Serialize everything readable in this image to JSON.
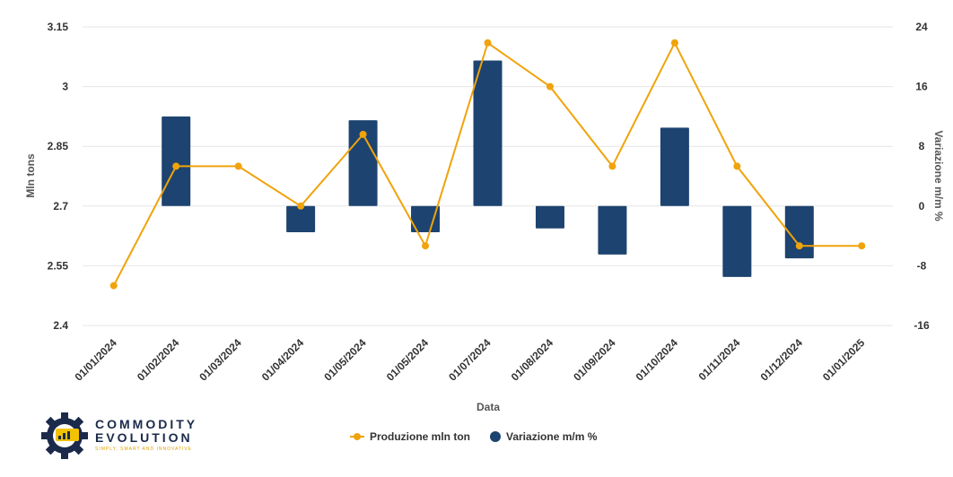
{
  "chart_data": {
    "type": "bar+line",
    "categories": [
      "01/01/2024",
      "01/02/2024",
      "01/03/2024",
      "01/04/2024",
      "01/05/2024",
      "01/05/2024",
      "01/07/2024",
      "01/08/2024",
      "01/09/2024",
      "01/10/2024",
      "01/11/2024",
      "01/12/2024",
      "01/01/2025"
    ],
    "series": [
      {
        "name": "Produzione mln ton",
        "kind": "line",
        "axis": "left",
        "color": "#f0a30a",
        "values": [
          2.5,
          2.8,
          2.8,
          2.7,
          2.88,
          2.6,
          3.11,
          3.0,
          2.8,
          3.11,
          2.8,
          2.6,
          2.6
        ]
      },
      {
        "name": "Variazione m/m %",
        "kind": "bar",
        "axis": "right",
        "color": "#1d4370",
        "values": [
          0,
          12,
          0,
          -3.5,
          11.5,
          -3.5,
          19.5,
          -3,
          -6.5,
          10.5,
          -9.5,
          -7,
          0
        ]
      }
    ],
    "xlabel": "Data",
    "ylabel": "Mln tons",
    "y2label": "Variazione m/m %",
    "ylim": [
      2.4,
      3.15
    ],
    "y2lim": [
      -16,
      24
    ],
    "yticks": [
      "3.15",
      "3",
      "2.85",
      "2.7",
      "2.55",
      "2.4"
    ],
    "y2ticks": [
      "24",
      "16",
      "8",
      "0",
      "-8",
      "-16"
    ],
    "grid": true,
    "legend": "bottom-center"
  },
  "logo": {
    "word1": "COMMODITY",
    "word2": "EVOLUTION",
    "tagline": "SIMPLY, SMART AND INNOVATIVE"
  }
}
